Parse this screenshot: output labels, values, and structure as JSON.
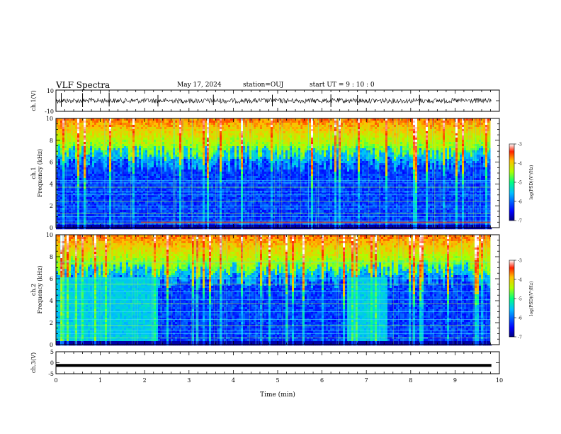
{
  "header": {
    "title": "VLF Spectra",
    "date": "May 17, 2024",
    "station": "station=OUJ",
    "start_ut": "start  UT =  9 : 10 : 0"
  },
  "chart_data": [
    {
      "type": "line",
      "ylabel": "ch.1(V)",
      "ylim": [
        -10,
        10
      ],
      "yticks": [
        "10",
        "-10"
      ],
      "xlim": [
        0,
        10
      ],
      "description_values": {
        "baseline": 0,
        "noise_amplitude": 1.2,
        "spikes_at_min": [
          0.12,
          0.6,
          1.2,
          2.3,
          3.55,
          4.88,
          6.2,
          6.8,
          8.2
        ]
      },
      "color": "#000000"
    },
    {
      "type": "heatmap",
      "ylabel": "ch.1\nFrequency (kHz)",
      "ylabel_line1": "ch.1",
      "ylabel_line2": "Frequency (kHz)",
      "ylim": [
        0,
        10
      ],
      "yticks": [
        "0",
        "2",
        "4",
        "6",
        "8",
        "10"
      ],
      "xlim": [
        0,
        10
      ],
      "data_end_min": 9.8,
      "colorbar": {
        "label": "log(PSD)(V²/Hz)",
        "range": [
          -7,
          -3
        ],
        "ticks": [
          "-3",
          "-4",
          "-5",
          "-6",
          "-7"
        ]
      },
      "quiet_intervals_min": [],
      "horizontal_lines_khz": [
        0.4,
        0.6,
        1.0,
        1.3,
        1.7,
        2.0,
        2.4,
        3.0,
        3.3,
        3.7,
        4.1,
        4.3
      ]
    },
    {
      "type": "heatmap",
      "ylabel": "ch.2\nFrequency (kHz)",
      "ylabel_line1": "ch.2",
      "ylabel_line2": "Frequency (kHz)",
      "ylim": [
        0,
        10
      ],
      "yticks": [
        "0",
        "2",
        "4",
        "6",
        "8",
        "10"
      ],
      "xlim": [
        0,
        10
      ],
      "data_end_min": 9.8,
      "colorbar": {
        "label": "log(PSD)(V²/Hz)",
        "range": [
          -7,
          -3
        ],
        "ticks": [
          "-3",
          "-4",
          "-5",
          "-6",
          "-7"
        ]
      },
      "elevated_intervals_min": [
        [
          0,
          2.3
        ],
        [
          6.55,
          7.45
        ]
      ],
      "horizontal_lines_khz": [
        0.6,
        1.0,
        1.3,
        1.7,
        2.3,
        3.0,
        3.7,
        4.1,
        4.8,
        5.5,
        6.0,
        7.5
      ]
    },
    {
      "type": "line",
      "ylabel": "ch.3(V)",
      "ylim": [
        -5,
        5
      ],
      "yticks": [
        "5",
        "0",
        "-5"
      ],
      "xlim": [
        0,
        10
      ],
      "values_constant": -1.2,
      "color": "#000000"
    }
  ],
  "xaxis": {
    "label": "Time (min)",
    "ticks": [
      "0",
      "1",
      "2",
      "3",
      "4",
      "5",
      "6",
      "7",
      "8",
      "9",
      "10"
    ]
  }
}
